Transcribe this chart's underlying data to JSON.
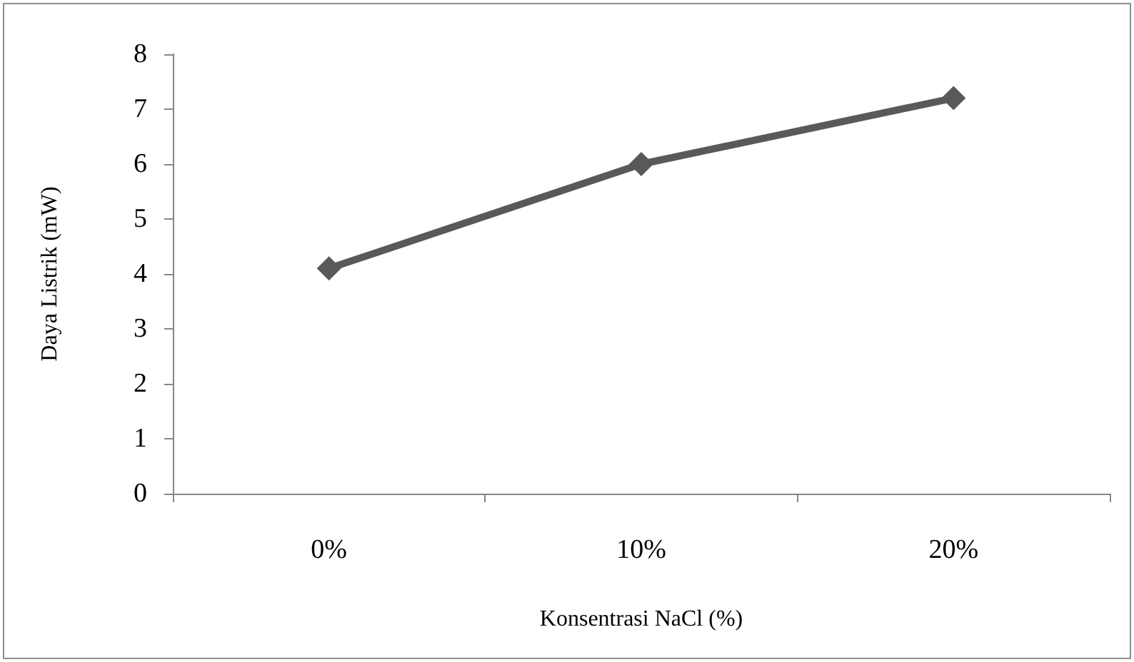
{
  "chart_data": {
    "type": "line",
    "xlabel": "Konsentrasi NaCl (%)",
    "ylabel": "Daya Listrik (mW)",
    "categories": [
      "0%",
      "10%",
      "20%"
    ],
    "series": [
      {
        "color": "#595959",
        "values": [
          4.1,
          6.0,
          7.2
        ]
      }
    ],
    "ylim": [
      0,
      8
    ],
    "yticks": [
      0,
      1,
      2,
      3,
      4,
      5,
      6,
      7,
      8
    ],
    "grid": false,
    "marker": "diamond",
    "line_style": "solid"
  }
}
